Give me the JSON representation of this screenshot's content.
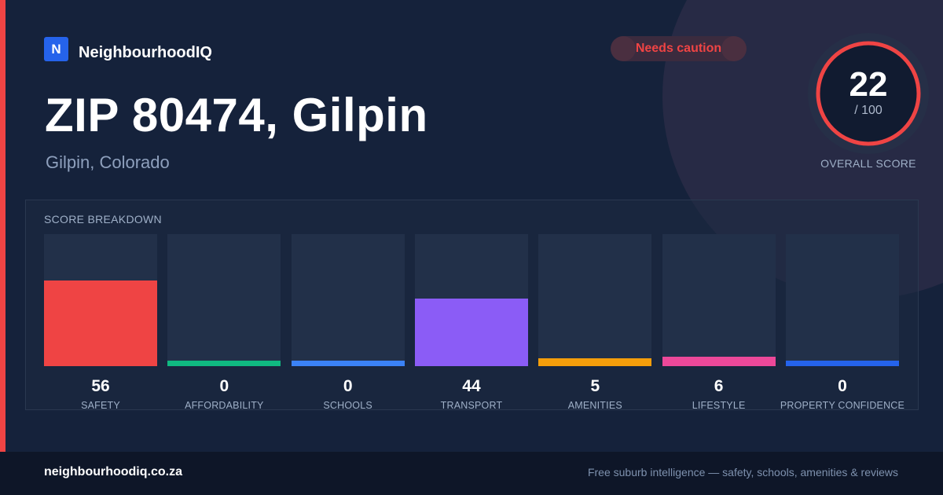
{
  "brand": {
    "logo_letter": "N",
    "name": "NeighbourhoodIQ"
  },
  "status": {
    "label": "Needs caution",
    "color": "#ef4444"
  },
  "header": {
    "title": "ZIP 80474, Gilpin",
    "subtitle": "Gilpin, Colorado"
  },
  "overall": {
    "score": "22",
    "max_label": "/ 100",
    "caption": "OVERALL SCORE",
    "value": 22,
    "max": 100,
    "ring_color": "#ef4444"
  },
  "breakdown_title": "SCORE BREAKDOWN",
  "chart_data": {
    "type": "bar",
    "title": "SCORE BREAKDOWN",
    "ylim": [
      0,
      100
    ],
    "grid": false,
    "categories": [
      "SAFETY",
      "AFFORDABILITY",
      "SCHOOLS",
      "TRANSPORT",
      "AMENITIES",
      "LIFESTYLE",
      "PROPERTY CONFIDENCE"
    ],
    "values": [
      56,
      0,
      0,
      44,
      5,
      6,
      0
    ],
    "value_labels": [
      "56",
      "0",
      "0",
      "44",
      "5",
      "6",
      "0"
    ],
    "colors": [
      "#ef4444",
      "#10b981",
      "#3b82f6",
      "#8b5cf6",
      "#f59e0b",
      "#ec4899",
      "#2563eb"
    ]
  },
  "footer": {
    "domain": "neighbourhoodiq.co.za",
    "tagline": "Free suburb intelligence — safety, schools, amenities & reviews"
  }
}
